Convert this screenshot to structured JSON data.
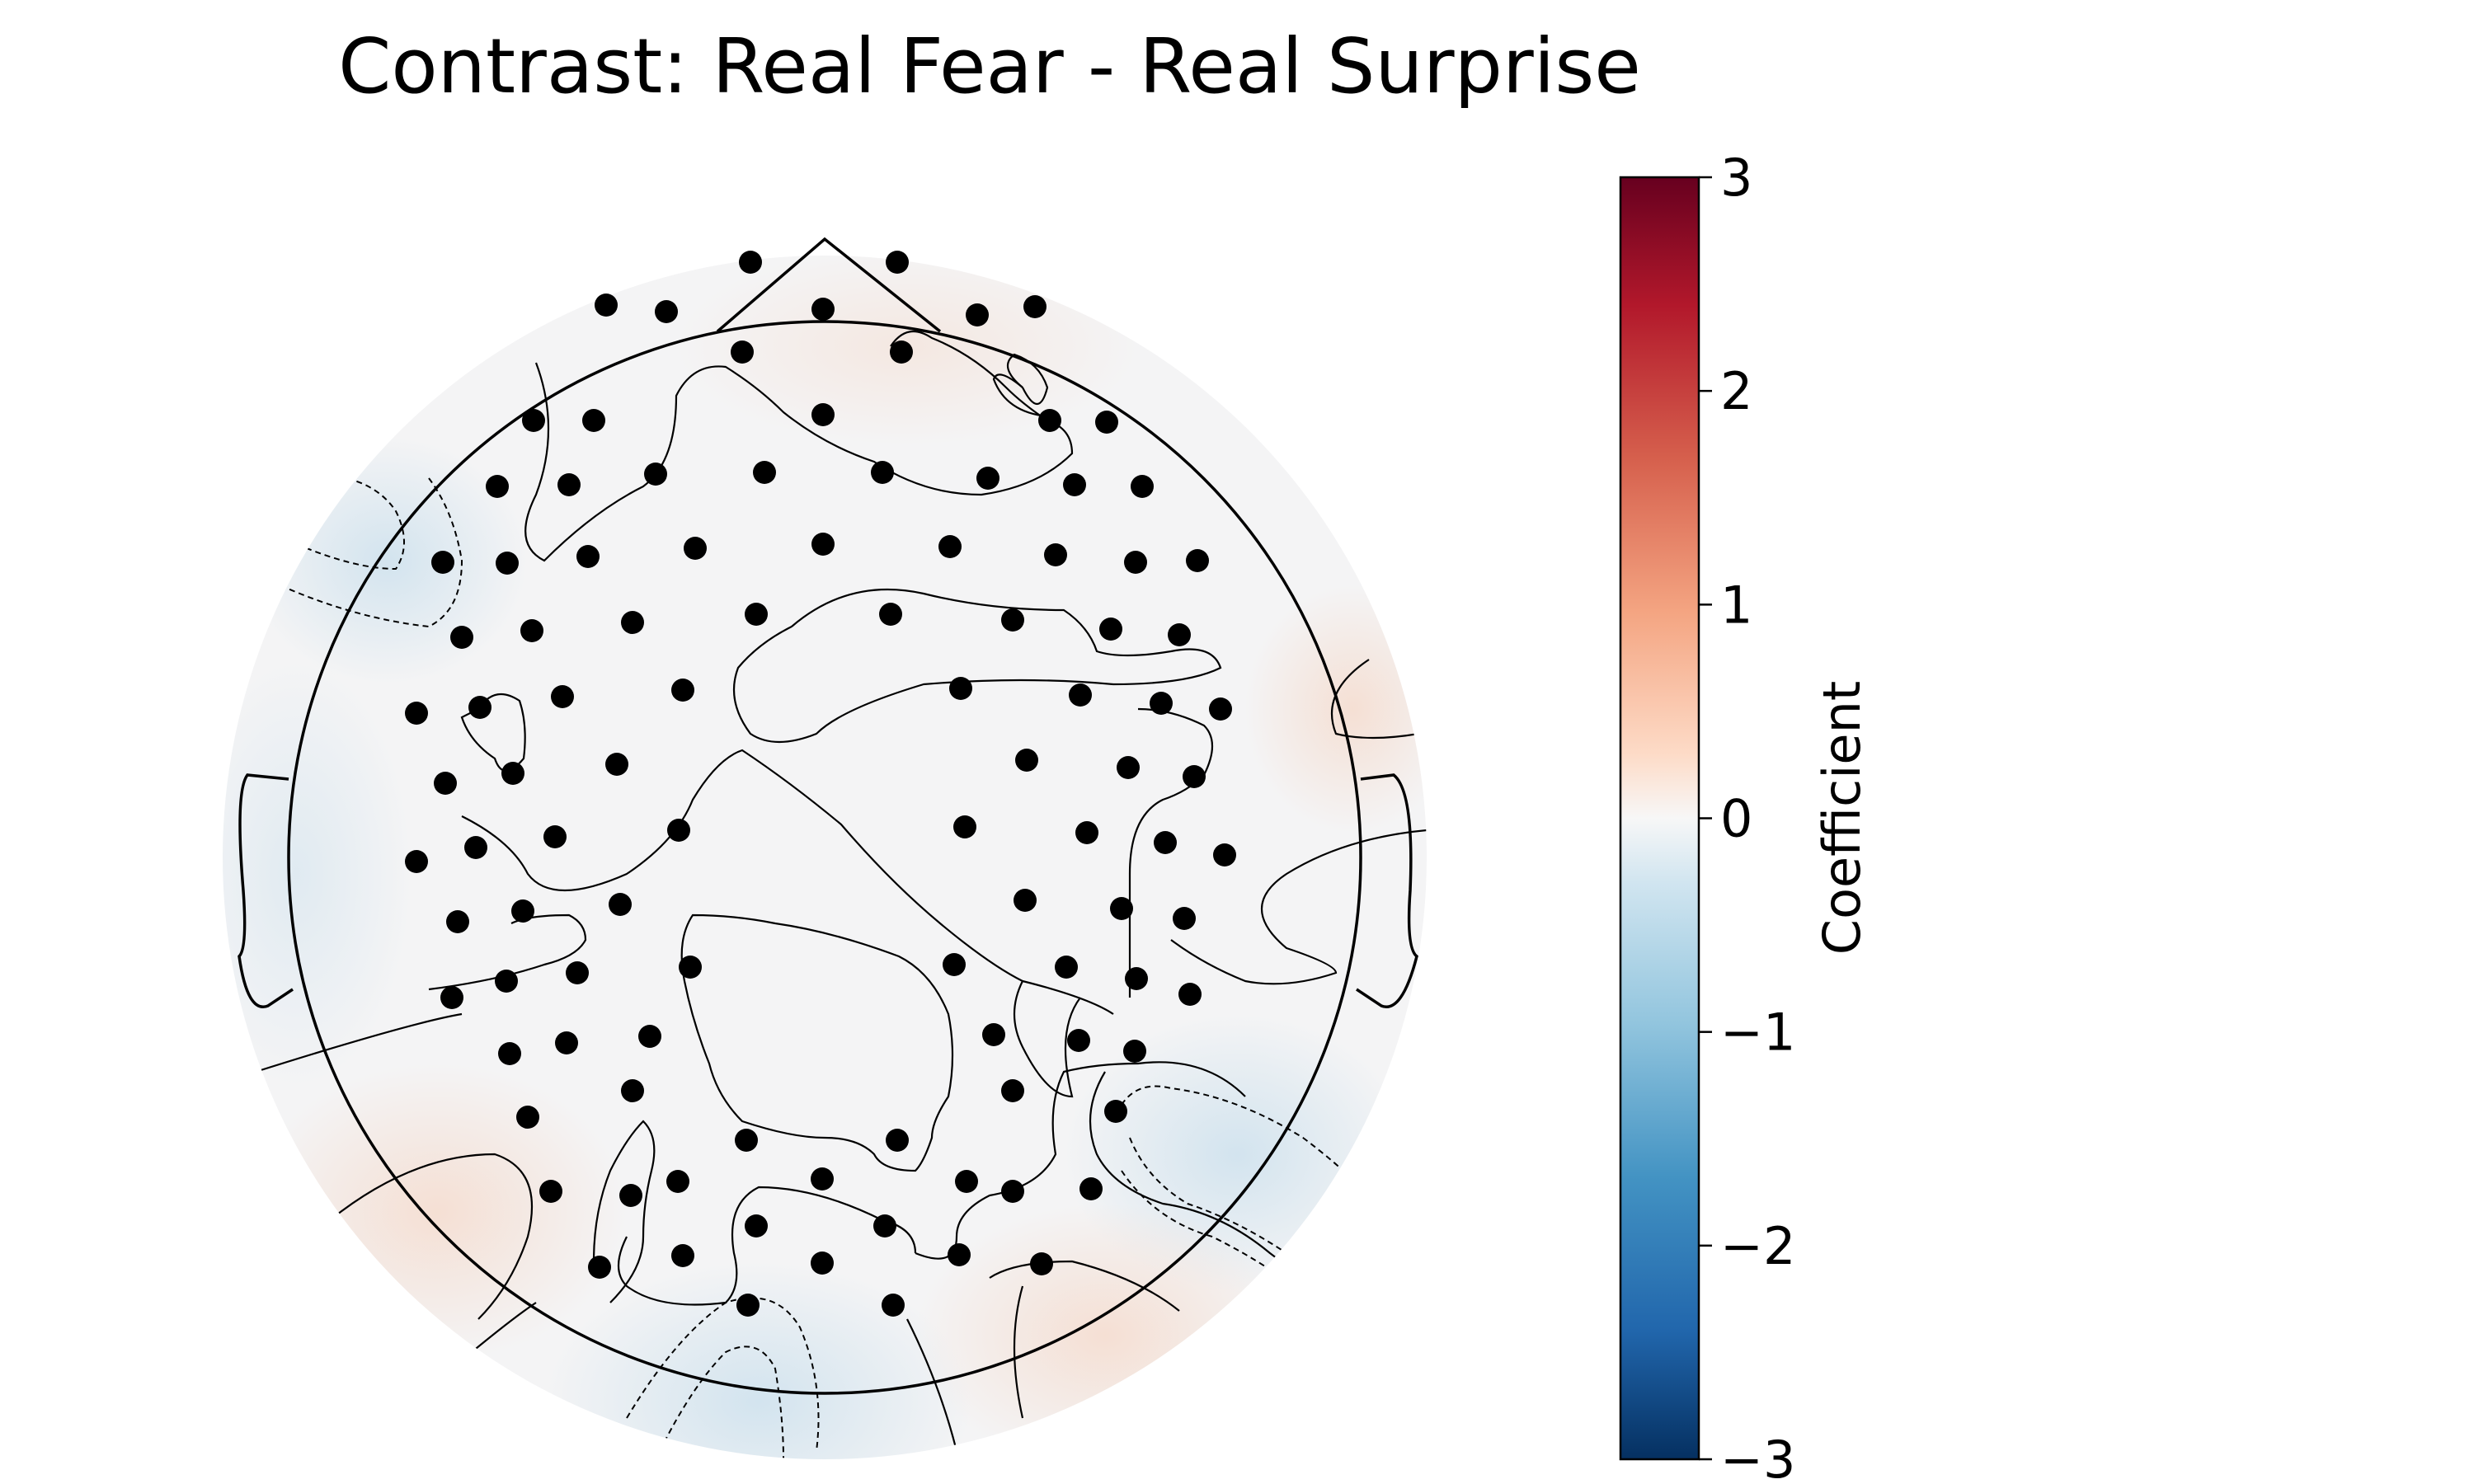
{
  "chart_data": {
    "type": "heatmap",
    "title": "Contrast: Real Fear - Real Surprise",
    "colorbar": {
      "label": "Coefficient",
      "colormap": "RdBu_r",
      "range": [
        -3,
        3
      ],
      "ticks": [
        3,
        2,
        1,
        0,
        -1,
        -2,
        -3
      ],
      "tick_labels": [
        "3",
        "2",
        "1",
        "0",
        "−1",
        "−2",
        "−3"
      ]
    },
    "colors": {
      "sensor": "#000000",
      "outline": "#000000",
      "head_fill": "#f4f4f5",
      "negative_tint": "#d6e6f0",
      "positive_tint": "#f6e2d8"
    },
    "legend": "none",
    "grid": false
  }
}
